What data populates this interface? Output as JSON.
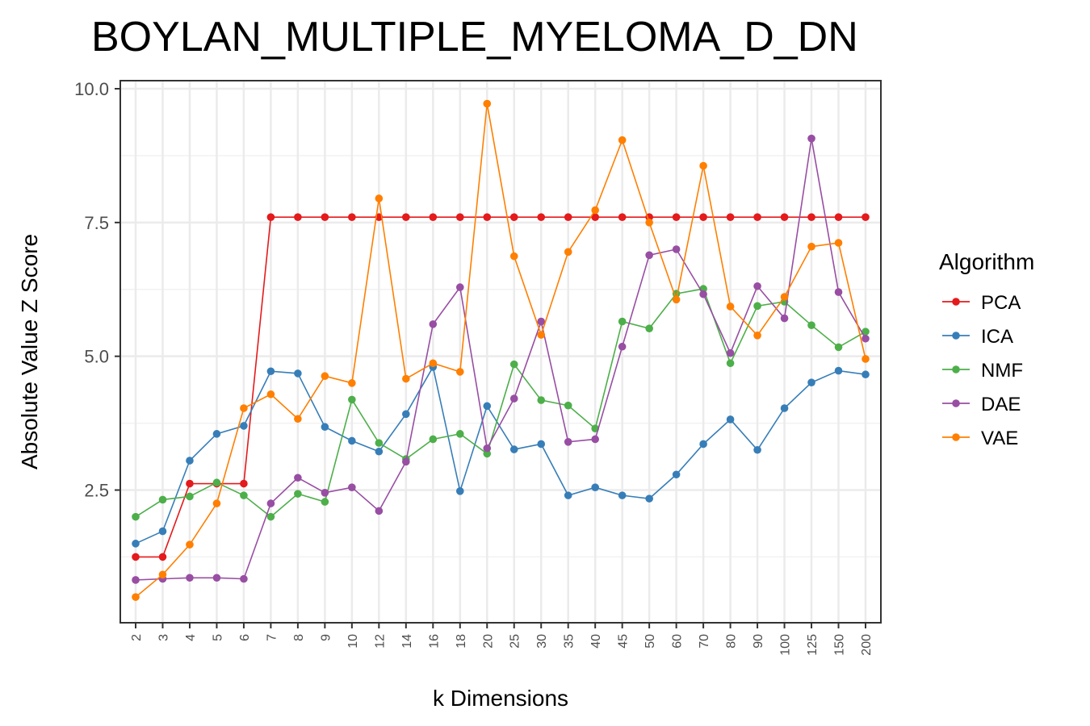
{
  "chart_data": {
    "type": "line",
    "title": "BOYLAN_MULTIPLE_MYELOMA_D_DN",
    "xlabel": "k Dimensions",
    "ylabel": "Absolute Value Z Score",
    "categories": [
      "2",
      "3",
      "4",
      "5",
      "6",
      "7",
      "8",
      "9",
      "10",
      "12",
      "14",
      "16",
      "18",
      "20",
      "25",
      "30",
      "35",
      "40",
      "45",
      "50",
      "60",
      "70",
      "80",
      "90",
      "100",
      "125",
      "150",
      "200"
    ],
    "ylim": [
      0.0,
      10.0
    ],
    "yticks": [
      2.5,
      5.0,
      7.5,
      10.0
    ],
    "ytick_labels": [
      "2.5",
      "5.0",
      "7.5",
      "10.0"
    ],
    "grid": true,
    "legend": {
      "title": "Algorithm",
      "position": "right"
    },
    "series": [
      {
        "name": "PCA",
        "color": "#e41a1c",
        "values": [
          1.25,
          1.25,
          2.62,
          2.62,
          2.62,
          7.6,
          7.6,
          7.6,
          7.6,
          7.6,
          7.6,
          7.6,
          7.6,
          7.6,
          7.6,
          7.6,
          7.6,
          7.6,
          7.6,
          7.6,
          7.6,
          7.6,
          7.6,
          7.6,
          7.6,
          7.6,
          7.6,
          7.6
        ]
      },
      {
        "name": "ICA",
        "color": "#377eb8",
        "values": [
          1.5,
          1.73,
          3.05,
          3.55,
          3.7,
          4.72,
          4.68,
          3.68,
          3.42,
          3.22,
          3.92,
          4.8,
          2.48,
          4.07,
          3.26,
          3.36,
          2.4,
          2.55,
          2.4,
          2.34,
          2.79,
          3.36,
          3.82,
          3.25,
          4.03,
          4.51,
          4.73,
          4.66
        ]
      },
      {
        "name": "NMF",
        "color": "#4daf4a",
        "values": [
          2.0,
          2.32,
          2.38,
          2.64,
          2.4,
          2.0,
          2.43,
          2.28,
          4.19,
          3.38,
          3.08,
          3.45,
          3.55,
          3.18,
          4.85,
          4.18,
          4.08,
          3.65,
          5.65,
          5.52,
          6.17,
          6.26,
          4.87,
          5.94,
          6.02,
          5.58,
          5.17,
          5.46
        ]
      },
      {
        "name": "DAE",
        "color": "#984ea3",
        "values": [
          0.82,
          0.84,
          0.86,
          0.86,
          0.84,
          2.25,
          2.73,
          2.45,
          2.55,
          2.11,
          3.03,
          5.6,
          6.29,
          3.28,
          4.21,
          5.65,
          3.4,
          3.45,
          5.18,
          6.89,
          7.0,
          6.16,
          5.06,
          6.31,
          5.71,
          9.07,
          6.2,
          5.33
        ]
      },
      {
        "name": "VAE",
        "color": "#ff7f00",
        "values": [
          0.5,
          0.92,
          1.48,
          2.25,
          4.03,
          4.29,
          3.83,
          4.63,
          4.5,
          7.95,
          4.58,
          4.87,
          4.71,
          9.72,
          6.87,
          5.4,
          6.95,
          7.73,
          9.04,
          7.5,
          6.06,
          8.56,
          5.93,
          5.39,
          6.11,
          7.05,
          7.12,
          4.95
        ]
      }
    ]
  }
}
